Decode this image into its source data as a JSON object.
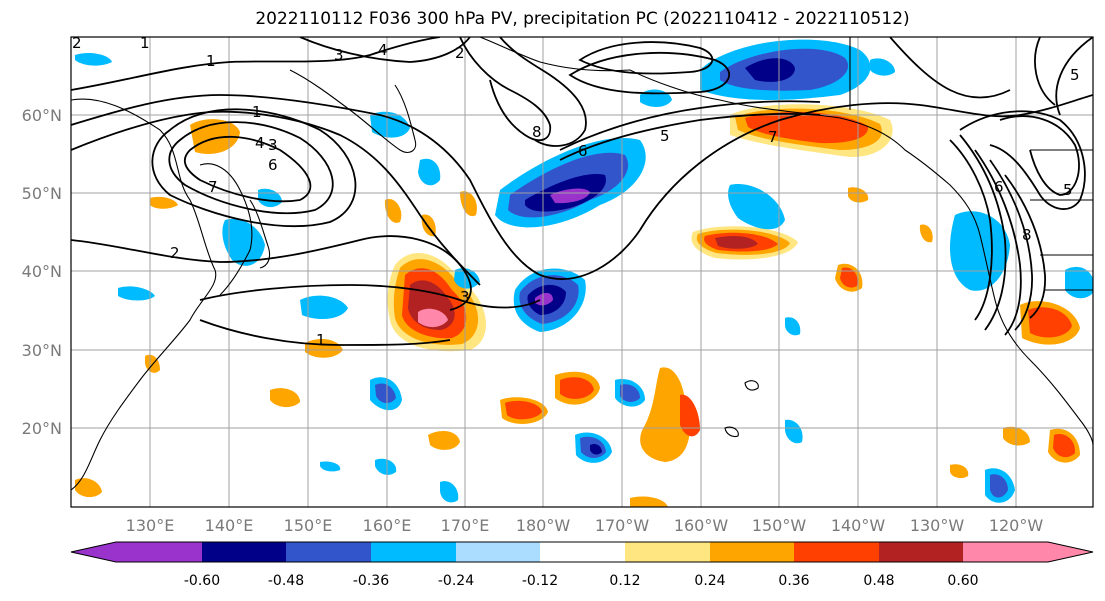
{
  "title": "2022110112 F036 300 hPa PV, precipitation PC (2022110412 - 2022110512)",
  "lat_labels": [
    "60°N",
    "50°N",
    "40°N",
    "30°N",
    "20°N"
  ],
  "lon_labels": [
    "130°E",
    "140°E",
    "150°E",
    "160°E",
    "170°E",
    "180°W",
    "170°W",
    "160°W",
    "150°W",
    "140°W",
    "130°W",
    "120°W"
  ],
  "colorbar": {
    "colors": [
      "#9933cc",
      "#000088",
      "#3355cc",
      "#00bbff",
      "#aaddff",
      "#ffffff",
      "#ffe680",
      "#ffa500",
      "#ff4000",
      "#b22222",
      "#ff88aa"
    ],
    "tick_labels": [
      "-0.60",
      "-0.48",
      "-0.36",
      "-0.24",
      "-0.12",
      "0.12",
      "0.24",
      "0.36",
      "0.48",
      "0.60"
    ]
  },
  "contour_labels": [
    "1",
    "1",
    "1",
    "1",
    "2",
    "2",
    "2",
    "3",
    "3",
    "3",
    "4",
    "4",
    "5",
    "5",
    "6",
    "6",
    "6",
    "7",
    "7",
    "8",
    "8",
    "5"
  ]
}
